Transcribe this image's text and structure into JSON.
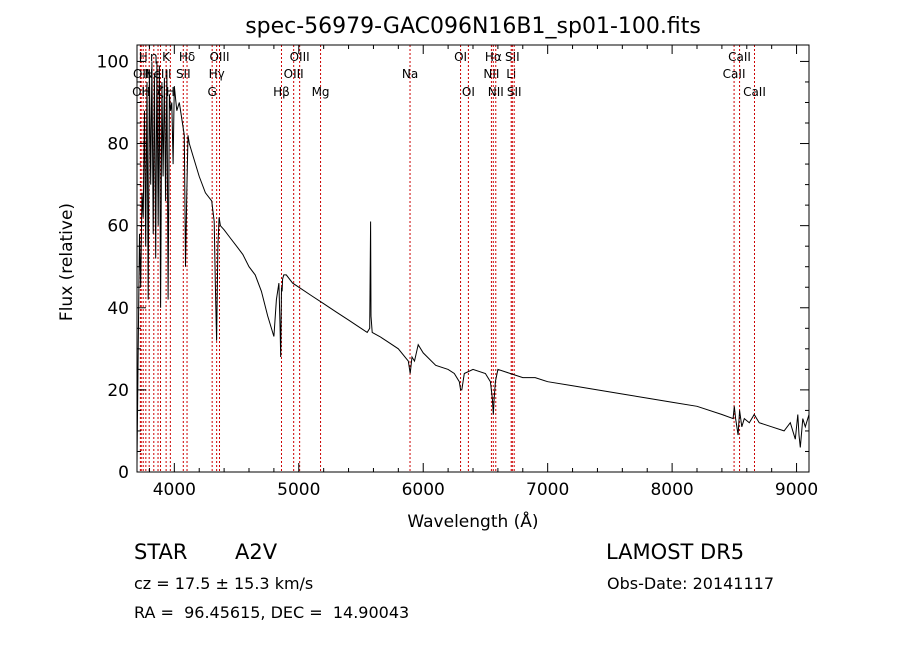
{
  "chart_data": {
    "type": "line",
    "title": "spec-56979-GAC096N16B1_sp01-100.fits",
    "xlabel": "Wavelength (Å)",
    "ylabel": "Flux (relative)",
    "xlim": [
      3700,
      9100
    ],
    "ylim": [
      0,
      104
    ],
    "xticks": [
      "4000",
      "5000",
      "6000",
      "7000",
      "8000",
      "9000"
    ],
    "xtick_values": [
      4000,
      5000,
      6000,
      7000,
      8000,
      9000
    ],
    "yticks": [
      "0",
      "20",
      "40",
      "60",
      "80",
      "100"
    ],
    "ytick_values": [
      0,
      20,
      40,
      60,
      80,
      100
    ],
    "grid": false,
    "line_color": "#000000",
    "marker_color": "#cc0000",
    "x": [
      3700,
      3710,
      3720,
      3730,
      3740,
      3750,
      3760,
      3770,
      3780,
      3790,
      3800,
      3810,
      3820,
      3830,
      3840,
      3850,
      3860,
      3870,
      3880,
      3890,
      3900,
      3910,
      3920,
      3930,
      3940,
      3950,
      3960,
      3970,
      3980,
      3990,
      4000,
      4020,
      4040,
      4060,
      4080,
      4090,
      4100,
      4110,
      4120,
      4150,
      4200,
      4250,
      4300,
      4320,
      4330,
      4340,
      4350,
      4360,
      4370,
      4400,
      4450,
      4500,
      4550,
      4600,
      4650,
      4700,
      4750,
      4800,
      4820,
      4840,
      4850,
      4855,
      4861,
      4866,
      4870,
      4880,
      4900,
      4950,
      5000,
      5100,
      5200,
      5300,
      5400,
      5500,
      5550,
      5570,
      5577,
      5580,
      5590,
      5650,
      5700,
      5800,
      5880,
      5895,
      5910,
      5930,
      5960,
      6000,
      6100,
      6200,
      6250,
      6290,
      6300,
      6310,
      6330,
      6400,
      6500,
      6540,
      6555,
      6563,
      6570,
      6580,
      6600,
      6700,
      6800,
      6900,
      7000,
      7200,
      7400,
      7600,
      7800,
      8000,
      8200,
      8400,
      8490,
      8500,
      8510,
      8530,
      8542,
      8560,
      8580,
      8620,
      8660,
      8700,
      8800,
      8900,
      8950,
      8990,
      9010,
      9020,
      9030,
      9050,
      9070,
      9100
    ],
    "y": [
      2,
      30,
      58,
      45,
      68,
      62,
      88,
      55,
      95,
      42,
      98,
      70,
      100,
      58,
      97,
      52,
      100,
      60,
      99,
      40,
      95,
      72,
      96,
      66,
      98,
      42,
      92,
      88,
      90,
      75,
      94,
      88,
      90,
      86,
      82,
      50,
      68,
      82,
      80,
      77,
      72,
      68,
      66,
      61,
      45,
      32,
      55,
      62,
      60,
      59,
      57,
      55,
      53,
      50,
      48,
      44,
      38,
      33,
      42,
      46,
      35,
      28,
      45,
      44,
      47,
      48,
      48,
      46,
      45,
      43,
      41,
      39,
      37,
      35,
      34,
      35,
      61,
      38,
      34,
      33,
      32,
      30,
      27,
      24,
      28,
      27,
      31,
      29,
      26,
      25,
      24,
      22,
      20,
      20,
      24,
      25,
      24,
      22,
      18,
      14,
      18,
      22,
      25,
      24,
      23,
      23,
      22,
      21,
      20,
      19,
      18,
      17,
      16,
      14,
      13,
      16,
      13,
      9,
      15,
      11,
      13,
      12,
      14,
      12,
      11,
      10,
      12,
      8,
      14,
      9,
      6,
      13,
      11,
      14
    ],
    "markers": [
      {
        "wl": 3727,
        "label": "OII",
        "row": 3
      },
      {
        "wl": 3734,
        "label": "OII",
        "row": 2
      },
      {
        "wl": 3750,
        "label": "H",
        "row": 1
      },
      {
        "wl": 3771,
        "label": "H",
        "row": 3
      },
      {
        "wl": 3798,
        "label": "H",
        "row": 2
      },
      {
        "wl": 3835,
        "label": "η",
        "row": 1
      },
      {
        "wl": 3869,
        "label": "NeIII",
        "row": 2
      },
      {
        "wl": 3889,
        "label": "ζ",
        "row": 3
      },
      {
        "wl": 3934,
        "label": "K",
        "row": 1
      },
      {
        "wl": 3968,
        "label": "H",
        "row": 3
      },
      {
        "wl": 4072,
        "label": "SII",
        "row": 2
      },
      {
        "wl": 4102,
        "label": "Hδ",
        "row": 1
      },
      {
        "wl": 4304,
        "label": "G",
        "row": 3
      },
      {
        "wl": 4340,
        "label": "Hγ",
        "row": 2
      },
      {
        "wl": 4363,
        "label": "OIII",
        "row": 1
      },
      {
        "wl": 4861,
        "label": "Hβ",
        "row": 3
      },
      {
        "wl": 4959,
        "label": "OIII",
        "row": 2
      },
      {
        "wl": 5007,
        "label": "OIII",
        "row": 1
      },
      {
        "wl": 5175,
        "label": "Mg",
        "row": 3
      },
      {
        "wl": 5894,
        "label": "Na",
        "row": 2
      },
      {
        "wl": 6300,
        "label": "OI",
        "row": 1
      },
      {
        "wl": 6363,
        "label": "OI",
        "row": 3
      },
      {
        "wl": 6548,
        "label": "NII",
        "row": 2
      },
      {
        "wl": 6563,
        "label": "Hα",
        "row": 1
      },
      {
        "wl": 6583,
        "label": "NII",
        "row": 3
      },
      {
        "wl": 6707,
        "label": "Li",
        "row": 2
      },
      {
        "wl": 6716,
        "label": "SII",
        "row": 1
      },
      {
        "wl": 6731,
        "label": "SII",
        "row": 3
      },
      {
        "wl": 8498,
        "label": "CaII",
        "row": 2
      },
      {
        "wl": 8542,
        "label": "CaII",
        "row": 1
      },
      {
        "wl": 8662,
        "label": "CaII",
        "row": 3
      }
    ]
  },
  "info": {
    "object_class": "STAR",
    "subclass": "A2V",
    "survey": "LAMOST DR5",
    "redshift": "cz = 17.5 ± 15.3 km/s",
    "obs_date": "Obs-Date: 20141117",
    "coords": "RA =  96.45615, DEC =  14.90043"
  }
}
